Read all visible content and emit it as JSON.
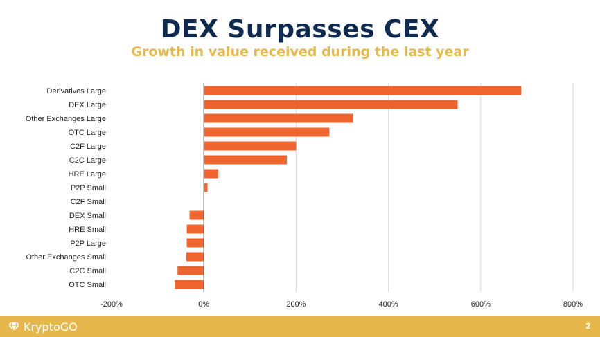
{
  "slide": {
    "title": "DEX Surpasses CEX",
    "subtitle": "Growth in value received during the last year",
    "page_number": "2"
  },
  "footer": {
    "logo_text": "KryptoGO",
    "logo_icon": "diamond-icon",
    "background_color": "#e6b84c"
  },
  "chart_data": {
    "type": "bar",
    "orientation": "horizontal",
    "bar_color": "#ef6530",
    "categories": [
      "Derivatives Large",
      "DEX Large",
      "Other Exchanges Large",
      "OTC Large",
      "C2F Large",
      "C2C Large",
      "HRE Large",
      "P2P Small",
      "C2F Small",
      "DEX Small",
      "HRE Small",
      "P2P Large",
      "Other Exchanges Small",
      "C2C Small",
      "OTC Small"
    ],
    "values": [
      688,
      550,
      324,
      272,
      200,
      180,
      31,
      8,
      0,
      -31,
      -37,
      -37,
      -38,
      -57,
      -63
    ],
    "xlim": [
      -200,
      800
    ],
    "xticks": [
      -200,
      0,
      200,
      400,
      600,
      800
    ],
    "tick_labels": [
      "-200%",
      "0%",
      "200%",
      "400%",
      "600%",
      "800%"
    ],
    "unit": "%",
    "grid": true,
    "legend": "none"
  }
}
